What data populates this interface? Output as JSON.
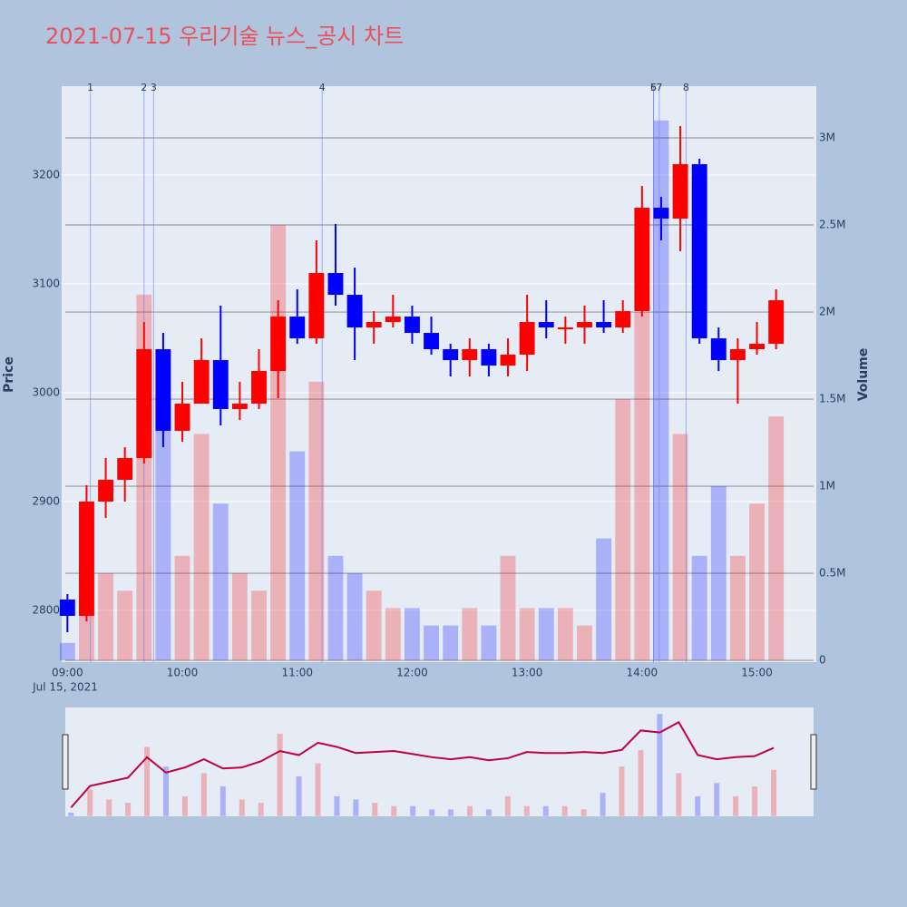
{
  "chart_data": {
    "type": "candlestick",
    "title": "2021-07-15 우리기술 뉴스_공시 차트",
    "y_label": "Price",
    "y2_label": "Volume",
    "x_date_label": "Jul 15, 2021",
    "increasing_color": "#ff0000",
    "decreasing_color": "#0000ff",
    "xlim": [
      "08:57",
      "15:31"
    ],
    "xticks": [
      "09:00",
      "10:00",
      "11:00",
      "12:00",
      "13:00",
      "14:00",
      "15:00"
    ],
    "ylim": [
      2752.5,
      3281.7
    ],
    "yticks": [
      2800,
      2900,
      3000,
      3100,
      3200
    ],
    "y2lim": [
      -10000,
      3297000
    ],
    "y2ticks": [
      0,
      {
        "value": 500000,
        "label": "0.5M"
      },
      {
        "value": 1000000,
        "label": "1M"
      },
      {
        "value": 1500000,
        "label": "1.5M"
      },
      {
        "value": 2000000,
        "label": "2M"
      },
      {
        "value": 2500000,
        "label": "2.5M"
      },
      {
        "value": 3000000,
        "label": "3M"
      }
    ],
    "grid": true,
    "x": [
      "09:00",
      "09:10",
      "09:20",
      "09:30",
      "09:40",
      "09:50",
      "10:00",
      "10:10",
      "10:20",
      "10:30",
      "10:40",
      "10:50",
      "11:00",
      "11:10",
      "11:20",
      "11:30",
      "11:40",
      "11:50",
      "12:00",
      "12:10",
      "12:20",
      "12:30",
      "12:40",
      "12:50",
      "13:00",
      "13:10",
      "13:20",
      "13:30",
      "13:40",
      "13:50",
      "14:00",
      "14:10",
      "14:20",
      "14:30",
      "14:40",
      "14:50",
      "15:00",
      "15:10"
    ],
    "open": [
      2810,
      2795,
      2900,
      2920,
      2940,
      3040,
      2965,
      2990,
      3030,
      2985,
      2990,
      3020,
      3070,
      3050,
      3110,
      3090,
      3060,
      3065,
      3070,
      3055,
      3040,
      3030,
      3040,
      3025,
      3035,
      3065,
      3060,
      3060,
      3065,
      3060,
      3075,
      3170,
      3160,
      3210,
      3050,
      3030,
      3040,
      3045
    ],
    "high": [
      2815,
      2915,
      2940,
      2950,
      3065,
      3055,
      3010,
      3050,
      3080,
      3010,
      3040,
      3085,
      3095,
      3140,
      3155,
      3115,
      3075,
      3090,
      3080,
      3070,
      3045,
      3050,
      3045,
      3050,
      3090,
      3085,
      3070,
      3080,
      3085,
      3085,
      3190,
      3180,
      3245,
      3215,
      3060,
      3050,
      3065,
      3095
    ],
    "low": [
      2780,
      2790,
      2885,
      2900,
      2935,
      2950,
      2955,
      2990,
      2970,
      2975,
      2985,
      2995,
      3045,
      3045,
      3080,
      3030,
      3045,
      3060,
      3045,
      3035,
      3015,
      3015,
      3015,
      3015,
      3020,
      3050,
      3045,
      3045,
      3055,
      3055,
      3070,
      3140,
      3130,
      3045,
      3020,
      2990,
      3035,
      3040
    ],
    "close": [
      2795,
      2900,
      2920,
      2940,
      3040,
      2965,
      2990,
      3030,
      2985,
      2990,
      3020,
      3070,
      3050,
      3110,
      3090,
      3060,
      3065,
      3070,
      3055,
      3040,
      3030,
      3040,
      3025,
      3035,
      3065,
      3060,
      3060,
      3065,
      3060,
      3075,
      3170,
      3160,
      3210,
      3050,
      3030,
      3040,
      3045,
      3085
    ],
    "volume": [
      100000,
      800000,
      500000,
      400000,
      2100000,
      1500000,
      600000,
      1300000,
      900000,
      500000,
      400000,
      2500000,
      1200000,
      1600000,
      600000,
      500000,
      400000,
      300000,
      300000,
      200000,
      200000,
      300000,
      200000,
      600000,
      300000,
      300000,
      300000,
      200000,
      700000,
      1500000,
      2000000,
      3100000,
      1300000,
      600000,
      1000000,
      600000,
      900000,
      1400000
    ],
    "annotations": [
      {
        "x": "09:12",
        "text": "1"
      },
      {
        "x": "09:40",
        "text": "2"
      },
      {
        "x": "09:45",
        "text": "3"
      },
      {
        "x": "11:13",
        "text": "4"
      },
      {
        "x": "14:06",
        "text": "5"
      },
      {
        "x": "14:06",
        "text": "6"
      },
      {
        "x": "14:09",
        "text": "7"
      },
      {
        "x": "14:23",
        "text": "8"
      }
    ]
  }
}
